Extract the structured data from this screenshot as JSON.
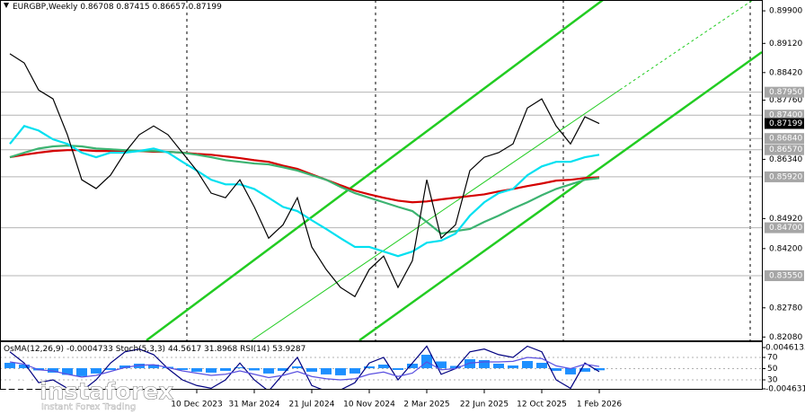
{
  "chart_data": [
    {
      "type": "line",
      "title": "EURGBP,Weekly",
      "ohlc": [
        0.86708,
        0.87415,
        0.86657,
        0.87199
      ],
      "categories": [
        null,
        null,
        null,
        null,
        null,
        null,
        null,
        null,
        null,
        null,
        null,
        null,
        null,
        "10 Dec 2023",
        null,
        null,
        null,
        "31 Mar 2024",
        null,
        null,
        null,
        "21 Jul 2024",
        null,
        null,
        null,
        "10 Nov 2024",
        null,
        null,
        null,
        "2 Mar 2025",
        null,
        null,
        null,
        "22 Jun 2025",
        null,
        null,
        null,
        "12 Oct 2025",
        null,
        null,
        null,
        "1 Feb 2026"
      ],
      "series": [
        {
          "color": "#000000",
          "values": [
            0.8887,
            0.8865,
            0.88,
            0.8779,
            0.8693,
            0.8585,
            0.8564,
            0.8596,
            0.865,
            0.8693,
            0.8714,
            0.8693,
            0.865,
            0.8607,
            0.8553,
            0.8542,
            0.8585,
            0.852,
            0.8445,
            0.8477,
            0.8542,
            0.8424,
            0.837,
            0.8327,
            0.8305,
            0.837,
            0.8402,
            0.8327,
            0.8391,
            0.8585,
            0.8445,
            0.8477,
            0.8607,
            0.8639,
            0.865,
            0.8671,
            0.8757,
            0.8779,
            0.8714,
            0.8671,
            0.8736,
            0.87199
          ]
        },
        {
          "color": "#00e0f0",
          "values": [
            0.8671,
            0.8714,
            0.8703,
            0.8682,
            0.8671,
            0.865,
            0.8639,
            0.865,
            0.865,
            0.8654,
            0.866,
            0.865,
            0.8628,
            0.8607,
            0.8585,
            0.8574,
            0.8574,
            0.8563,
            0.8542,
            0.852,
            0.851,
            0.8488,
            0.8467,
            0.8445,
            0.8424,
            0.8424,
            0.8413,
            0.8402,
            0.8413,
            0.8434,
            0.8439,
            0.8456,
            0.8499,
            0.8531,
            0.8553,
            0.8563,
            0.8596,
            0.8617,
            0.8628,
            0.8628,
            0.8639,
            0.8645
          ]
        },
        {
          "color": "#3cb371",
          "values": [
            0.8639,
            0.865,
            0.866,
            0.8665,
            0.8667,
            0.8665,
            0.866,
            0.8658,
            0.8656,
            0.8654,
            0.8654,
            0.8652,
            0.865,
            0.8645,
            0.8639,
            0.8632,
            0.8628,
            0.8624,
            0.8622,
            0.8615,
            0.8607,
            0.8596,
            0.8585,
            0.8568,
            0.8553,
            0.8542,
            0.8531,
            0.852,
            0.851,
            0.8484,
            0.8456,
            0.8462,
            0.8467,
            0.8484,
            0.8499,
            0.8516,
            0.8531,
            0.8548,
            0.8563,
            0.8574,
            0.8585,
            0.8589
          ]
        },
        {
          "color": "#d40000",
          "values": [
            0.8639,
            0.8645,
            0.865,
            0.8654,
            0.8656,
            0.8656,
            0.8654,
            0.8654,
            0.8654,
            0.8654,
            0.8652,
            0.8652,
            0.865,
            0.8647,
            0.8645,
            0.8641,
            0.8637,
            0.8632,
            0.8628,
            0.8619,
            0.8611,
            0.8598,
            0.8585,
            0.8572,
            0.8559,
            0.855,
            0.8542,
            0.8535,
            0.8531,
            0.8533,
            0.8538,
            0.8542,
            0.8546,
            0.855,
            0.8557,
            0.8563,
            0.857,
            0.8576,
            0.8583,
            0.8585,
            0.8589,
            0.8591
          ]
        }
      ],
      "ylim": [
        0.82,
        0.9016
      ],
      "yticks": [
        {
          "value": 0.899,
          "label": "0.89900"
        },
        {
          "value": 0.8912,
          "label": "0.89120"
        },
        {
          "value": 0.8842,
          "label": "0.88420"
        },
        {
          "value": 0.8776,
          "label": "0.87760"
        },
        {
          "value": 0.8634,
          "label": "0.86340"
        },
        {
          "value": 0.8492,
          "label": "0.84920"
        },
        {
          "value": 0.842,
          "label": "0.84200"
        },
        {
          "value": 0.8278,
          "label": "0.82780"
        },
        {
          "value": 0.8208,
          "label": "0.82080"
        }
      ],
      "levels": [
        {
          "value": 0.8795,
          "label": "0.87950"
        },
        {
          "value": 0.874,
          "label": "0.87400"
        },
        {
          "value": 0.8684,
          "label": "0.86840"
        },
        {
          "value": 0.8657,
          "label": "0.86570"
        },
        {
          "value": 0.8592,
          "label": "0.85920"
        },
        {
          "value": 0.847,
          "label": "0.84700"
        },
        {
          "value": 0.8355,
          "label": "0.83550"
        }
      ]
    },
    {
      "type": "oscillator",
      "series": [
        {
          "name": "OsMA(12,26,9)",
          "color": "#1e90ff",
          "values": [
            0.0012,
            0.0008,
            -0.0005,
            -0.001,
            -0.0015,
            -0.0018,
            -0.0012,
            -0.0004,
            0.0006,
            0.001,
            0.0008,
            0.0003,
            -0.0004,
            -0.0008,
            -0.001,
            -0.0006,
            0.0002,
            -0.0005,
            -0.0012,
            -0.0006,
            0.0004,
            -0.0008,
            -0.0014,
            -0.0016,
            -0.0012,
            0.0004,
            0.0008,
            -0.0004,
            0.001,
            0.003,
            0.0015,
            0.0005,
            0.002,
            0.0018,
            0.001,
            0.0006,
            0.0016,
            0.0012,
            -0.0006,
            -0.0014,
            -0.0008,
            -0.0004733
          ]
        },
        {
          "name": "Stoch(5,3,3)",
          "color": "#000080",
          "axis": "y2",
          "signal": 31.8968,
          "values": [
            80,
            60,
            25,
            30,
            15,
            10,
            30,
            60,
            80,
            85,
            75,
            50,
            30,
            20,
            15,
            30,
            60,
            30,
            10,
            40,
            70,
            20,
            10,
            12,
            25,
            60,
            70,
            30,
            60,
            90,
            40,
            50,
            80,
            85,
            75,
            70,
            90,
            80,
            30,
            15,
            60,
            44.5617
          ]
        },
        {
          "name": "RSI(14)",
          "color": "#5a50e0",
          "axis": "y2",
          "values": [
            62,
            58,
            48,
            46,
            40,
            35,
            38,
            45,
            52,
            56,
            57,
            52,
            46,
            42,
            38,
            40,
            46,
            40,
            34,
            38,
            45,
            36,
            32,
            30,
            32,
            40,
            44,
            36,
            42,
            62,
            48,
            50,
            60,
            62,
            62,
            63,
            70,
            68,
            55,
            50,
            58,
            53.9287
          ]
        }
      ],
      "ylim": [
        -0.004631,
        0.0046135
      ],
      "yticks": [
        0.0046135,
        -0.004631
      ],
      "y2lim": [
        0,
        100
      ],
      "y2ticks": [
        70,
        50,
        30
      ]
    }
  ],
  "watermark": {
    "brand": "instaforex",
    "tagline": "Instant Forex Trading"
  }
}
